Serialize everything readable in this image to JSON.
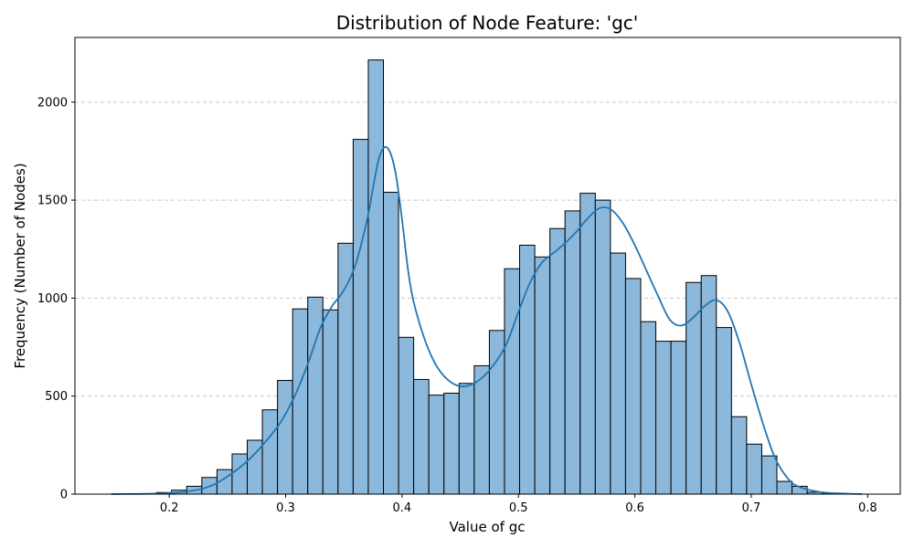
{
  "chart_data": {
    "type": "bar",
    "title": "Distribution of Node Feature: 'gc'",
    "xlabel": "Value of gc",
    "ylabel": "Frequency (Number of Nodes)",
    "xlim": [
      0.119,
      0.828
    ],
    "ylim": [
      0,
      2330
    ],
    "x_ticks": [
      0.2,
      0.3,
      0.4,
      0.5,
      0.6,
      0.7,
      0.8
    ],
    "x_tick_labels": [
      "0.2",
      "0.3",
      "0.4",
      "0.5",
      "0.6",
      "0.7",
      "0.8"
    ],
    "y_ticks": [
      0,
      500,
      1000,
      1500,
      2000
    ],
    "y_tick_labels": [
      "0",
      "500",
      "1000",
      "1500",
      "2000"
    ],
    "grid": "y-dashed",
    "legend": "none",
    "bar_color": "#8cb8db",
    "bar_edge_color": "#000000",
    "kde_color": "#1f77b4",
    "bins": {
      "left_edges": [
        0.15,
        0.163,
        0.176,
        0.189,
        0.202,
        0.215,
        0.228,
        0.241,
        0.254,
        0.267,
        0.28,
        0.293,
        0.306,
        0.319,
        0.332,
        0.345,
        0.358,
        0.371,
        0.384,
        0.397,
        0.41,
        0.423,
        0.436,
        0.449,
        0.462,
        0.475,
        0.488,
        0.501,
        0.514,
        0.527,
        0.54,
        0.553,
        0.566,
        0.579,
        0.592,
        0.605,
        0.618,
        0.631,
        0.644,
        0.657,
        0.67,
        0.683,
        0.696,
        0.709,
        0.722,
        0.735,
        0.748,
        0.761,
        0.774,
        0.787
      ],
      "width": 0.013,
      "counts": [
        0,
        0,
        2,
        8,
        20,
        40,
        85,
        125,
        205,
        275,
        430,
        580,
        945,
        1005,
        940,
        1280,
        1810,
        2215,
        1540,
        800,
        585,
        505,
        515,
        565,
        655,
        835,
        1150,
        1270,
        1210,
        1355,
        1445,
        1535,
        1500,
        1230,
        1100,
        880,
        780,
        780,
        1080,
        1115,
        850,
        395,
        255,
        195,
        65,
        40,
        10,
        5,
        2,
        0
      ]
    },
    "kde": {
      "x": [
        0.15,
        0.2,
        0.23,
        0.25,
        0.27,
        0.29,
        0.3,
        0.31,
        0.32,
        0.33,
        0.34,
        0.35,
        0.36,
        0.37,
        0.375,
        0.38,
        0.385,
        0.39,
        0.395,
        0.4,
        0.405,
        0.41,
        0.42,
        0.43,
        0.44,
        0.45,
        0.46,
        0.47,
        0.48,
        0.49,
        0.5,
        0.51,
        0.52,
        0.53,
        0.54,
        0.55,
        0.56,
        0.57,
        0.58,
        0.59,
        0.6,
        0.61,
        0.62,
        0.63,
        0.64,
        0.65,
        0.66,
        0.67,
        0.68,
        0.69,
        0.7,
        0.71,
        0.72,
        0.73,
        0.74,
        0.76,
        0.78,
        0.795
      ],
      "y": [
        0,
        5,
        30,
        90,
        185,
        320,
        410,
        530,
        680,
        850,
        960,
        1040,
        1170,
        1400,
        1560,
        1710,
        1770,
        1740,
        1620,
        1400,
        1150,
        980,
        780,
        650,
        580,
        550,
        560,
        600,
        670,
        770,
        930,
        1080,
        1180,
        1230,
        1280,
        1340,
        1410,
        1460,
        1450,
        1380,
        1270,
        1140,
        1010,
        890,
        860,
        900,
        960,
        990,
        930,
        770,
        560,
        360,
        190,
        90,
        40,
        10,
        3,
        0
      ]
    }
  }
}
